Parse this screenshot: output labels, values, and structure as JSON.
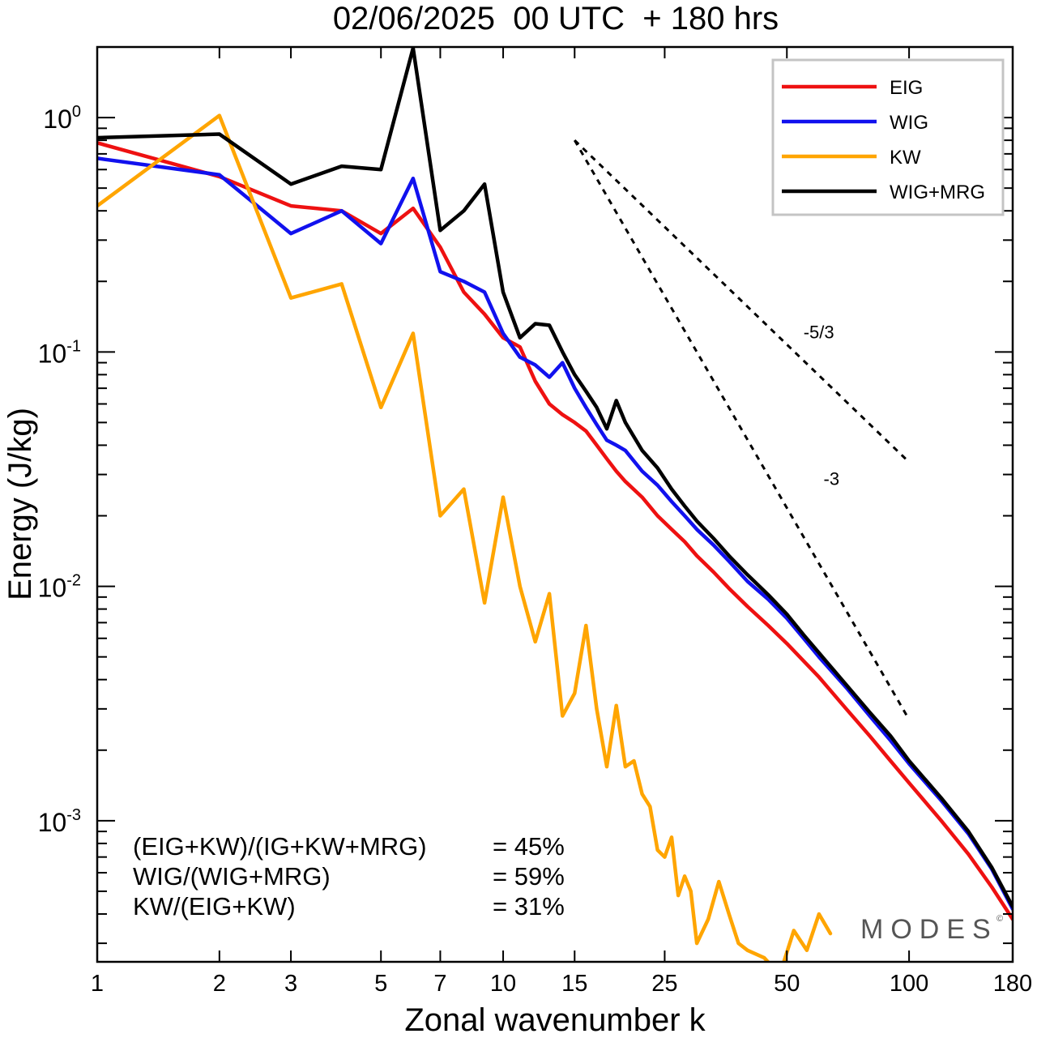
{
  "chart_data": {
    "type": "line",
    "title": "02/06/2025  00 UTC  + 180 hrs",
    "xlabel": "Zonal wavenumber k",
    "ylabel": "Energy (J/kg)",
    "xscale": "log",
    "yscale": "log",
    "xlim": [
      1,
      180
    ],
    "ylim": [
      0.00025,
      2.0
    ],
    "x_ticks": [
      1,
      2,
      3,
      5,
      7,
      10,
      15,
      25,
      50,
      100,
      180
    ],
    "x_tick_labels": [
      "1",
      "2",
      "3",
      "5",
      "7",
      "10",
      "15",
      "25",
      "50",
      "100",
      "180"
    ],
    "y_major_ticks": [
      {
        "value": 1.0,
        "base": "10",
        "exp": "0"
      },
      {
        "value": 0.1,
        "base": "10",
        "exp": "-1"
      },
      {
        "value": 0.01,
        "base": "10",
        "exp": "-2"
      },
      {
        "value": 0.001,
        "base": "10",
        "exp": "-3"
      }
    ],
    "legend_position": "top-right",
    "grid": false,
    "series": [
      {
        "name": "EIG",
        "color": "#ee1111",
        "x": [
          1,
          2,
          3,
          4,
          5,
          6,
          7,
          8,
          9,
          10,
          11,
          12,
          13,
          14,
          15,
          16,
          17,
          18,
          19,
          20,
          22,
          24,
          26,
          28,
          30,
          33,
          36,
          40,
          45,
          50,
          55,
          60,
          70,
          80,
          90,
          100,
          120,
          140,
          160,
          180
        ],
        "values": [
          0.78,
          0.56,
          0.42,
          0.4,
          0.32,
          0.41,
          0.28,
          0.18,
          0.145,
          0.115,
          0.105,
          0.075,
          0.06,
          0.054,
          0.05,
          0.046,
          0.04,
          0.035,
          0.031,
          0.028,
          0.024,
          0.02,
          0.0175,
          0.0155,
          0.0135,
          0.0115,
          0.0098,
          0.0082,
          0.0068,
          0.0057,
          0.0048,
          0.0041,
          0.003,
          0.0023,
          0.0018,
          0.00145,
          0.001,
          0.00072,
          0.00052,
          0.00038
        ]
      },
      {
        "name": "WIG",
        "color": "#1111ee",
        "x": [
          1,
          2,
          3,
          4,
          5,
          6,
          7,
          8,
          9,
          10,
          11,
          12,
          13,
          14,
          15,
          16,
          17,
          18,
          19,
          20,
          22,
          24,
          26,
          28,
          30,
          33,
          36,
          40,
          45,
          50,
          55,
          60,
          70,
          80,
          90,
          100,
          120,
          140,
          160,
          180
        ],
        "values": [
          0.67,
          0.57,
          0.32,
          0.4,
          0.29,
          0.55,
          0.22,
          0.2,
          0.18,
          0.12,
          0.095,
          0.088,
          0.078,
          0.09,
          0.07,
          0.058,
          0.049,
          0.042,
          0.04,
          0.038,
          0.031,
          0.027,
          0.023,
          0.02,
          0.0175,
          0.015,
          0.0128,
          0.0105,
          0.0088,
          0.0073,
          0.006,
          0.005,
          0.0037,
          0.0028,
          0.0022,
          0.00175,
          0.00122,
          0.00088,
          0.00062,
          0.00042
        ]
      },
      {
        "name": "KW",
        "color": "#ffa500",
        "x": [
          1,
          2,
          3,
          4,
          5,
          6,
          7,
          8,
          9,
          10,
          11,
          12,
          13,
          14,
          15,
          16,
          17,
          18,
          19,
          20,
          21,
          22,
          23,
          24,
          25,
          26,
          27,
          28,
          29,
          30,
          32,
          34,
          36,
          38,
          40,
          44,
          48,
          52,
          56,
          60,
          64
        ],
        "values": [
          0.42,
          1.02,
          0.17,
          0.195,
          0.058,
          0.12,
          0.02,
          0.026,
          0.0085,
          0.024,
          0.01,
          0.0058,
          0.0093,
          0.0028,
          0.0035,
          0.0068,
          0.003,
          0.0017,
          0.0031,
          0.0017,
          0.0018,
          0.0013,
          0.00115,
          0.00075,
          0.0007,
          0.00085,
          0.00048,
          0.00058,
          0.0005,
          0.0003,
          0.00038,
          0.00055,
          0.0004,
          0.0003,
          0.00028,
          0.00026,
          0.00022,
          0.00034,
          0.00028,
          0.0004,
          0.00033
        ]
      },
      {
        "name": "WIG+MRG",
        "color": "#000000",
        "x": [
          1,
          2,
          3,
          4,
          5,
          6,
          7,
          8,
          9,
          10,
          11,
          12,
          13,
          14,
          15,
          16,
          17,
          18,
          19,
          20,
          22,
          24,
          26,
          28,
          30,
          33,
          36,
          40,
          45,
          50,
          55,
          60,
          70,
          80,
          90,
          100,
          120,
          140,
          160,
          180
        ],
        "values": [
          0.82,
          0.85,
          0.52,
          0.62,
          0.6,
          1.98,
          0.33,
          0.4,
          0.52,
          0.18,
          0.115,
          0.132,
          0.13,
          0.1,
          0.08,
          0.068,
          0.058,
          0.047,
          0.062,
          0.05,
          0.038,
          0.032,
          0.026,
          0.022,
          0.019,
          0.016,
          0.0135,
          0.0112,
          0.0092,
          0.0076,
          0.0062,
          0.0052,
          0.0038,
          0.0029,
          0.0023,
          0.0018,
          0.00125,
          0.0009,
          0.00063,
          0.00043
        ]
      }
    ],
    "reference_slopes": [
      {
        "label": "-5/3",
        "slope": -1.6667,
        "x_start": 15,
        "x_end": 100,
        "y_start": 0.8
      },
      {
        "label": "-3",
        "slope": -3.0,
        "x_start": 15,
        "x_end": 100,
        "y_start": 0.8
      }
    ],
    "annotations": [
      {
        "label": "(EIG+KW)/(IG+KW+MRG)",
        "value": "= 45%"
      },
      {
        "label": "WIG/(WIG+MRG)",
        "value": "= 59%"
      },
      {
        "label": "KW/(EIG+KW)",
        "value": "= 31%"
      }
    ],
    "watermark": "MODES",
    "watermark_mark": "©"
  }
}
